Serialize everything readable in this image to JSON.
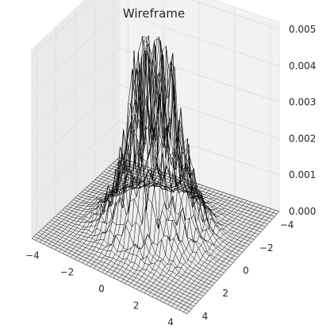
{
  "chart_data": {
    "type": "wireframe-3d",
    "title": "Wireframe",
    "xlabel": "",
    "ylabel": "",
    "zlabel": "",
    "xlim": [
      -4.5,
      4.5
    ],
    "ylim": [
      -4.5,
      4.5
    ],
    "zlim": [
      0,
      0.0052
    ],
    "grid": true,
    "x_ticks": [
      {
        "value": -4,
        "label": "−4"
      },
      {
        "value": -2,
        "label": "−2"
      },
      {
        "value": 0,
        "label": "0"
      },
      {
        "value": 2,
        "label": "2"
      },
      {
        "value": 4,
        "label": "4"
      }
    ],
    "y_ticks": [
      {
        "value": -4,
        "label": "−4"
      },
      {
        "value": -2,
        "label": "−2"
      },
      {
        "value": 0,
        "label": "0"
      },
      {
        "value": 2,
        "label": "2"
      },
      {
        "value": 4,
        "label": "4"
      }
    ],
    "z_ticks": [
      {
        "value": 0,
        "label": "0.000"
      },
      {
        "value": 0.001,
        "label": "0.001"
      },
      {
        "value": 0.002,
        "label": "0.002"
      },
      {
        "value": 0.003,
        "label": "0.003"
      },
      {
        "value": 0.004,
        "label": "0.004"
      },
      {
        "value": 0.005,
        "label": "0.005"
      }
    ],
    "surface": {
      "description_of_shape": "noisy 2D Gaussian peak centered near origin",
      "grid_n": 40,
      "center": [
        0,
        0
      ],
      "sigma": 1.2,
      "peak_z": 0.0048,
      "noise_fraction": 0.45,
      "line_color": "#000000",
      "pane_color": "#f2f2f2",
      "grid_color": "#ffffff"
    }
  }
}
